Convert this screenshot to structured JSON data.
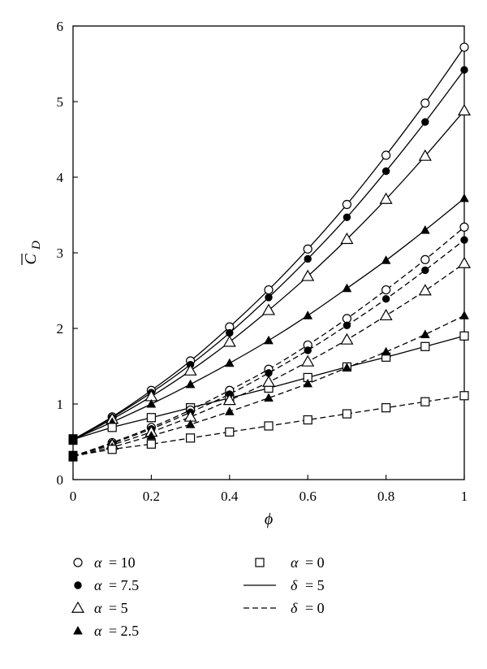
{
  "chart_data": {
    "type": "line",
    "xlabel": "ϕ",
    "ylabel_main": "C",
    "ylabel_sub": "D",
    "xlim": [
      0,
      1
    ],
    "ylim": [
      0,
      6
    ],
    "x_ticks": [
      "0",
      "0.2",
      "0.4",
      "0.6",
      "0.8",
      "1"
    ],
    "y_ticks": [
      "0",
      "1",
      "2",
      "3",
      "4",
      "5",
      "6"
    ],
    "grid": false,
    "legend_position": "bottom",
    "x": [
      0,
      0.1,
      0.2,
      0.3,
      0.4,
      0.5,
      0.6,
      0.7,
      0.8,
      0.9,
      1.0
    ],
    "series": [
      {
        "alpha": 10,
        "delta": 5,
        "marker": "circle-open",
        "linestyle": "solid",
        "values": [
          0.53,
          0.83,
          1.18,
          1.57,
          2.02,
          2.51,
          3.05,
          3.64,
          4.29,
          4.98,
          5.72
        ]
      },
      {
        "alpha": 7.5,
        "delta": 5,
        "marker": "circle-filled",
        "linestyle": "solid",
        "values": [
          0.53,
          0.82,
          1.15,
          1.52,
          1.94,
          2.41,
          2.92,
          3.47,
          4.08,
          4.73,
          5.42
        ]
      },
      {
        "alpha": 5,
        "delta": 5,
        "marker": "triangle-open",
        "linestyle": "solid",
        "values": [
          0.53,
          0.8,
          1.1,
          1.44,
          1.82,
          2.24,
          2.69,
          3.18,
          3.71,
          4.28,
          4.88
        ]
      },
      {
        "alpha": 2.5,
        "delta": 5,
        "marker": "triangle-filled",
        "linestyle": "solid",
        "values": [
          0.53,
          0.76,
          1.0,
          1.26,
          1.54,
          1.84,
          2.17,
          2.53,
          2.9,
          3.3,
          3.72
        ]
      },
      {
        "alpha": 0,
        "delta": 5,
        "marker": "square-open",
        "linestyle": "solid",
        "values": [
          0.53,
          0.69,
          0.82,
          0.95,
          1.08,
          1.21,
          1.35,
          1.49,
          1.62,
          1.76,
          1.9
        ]
      },
      {
        "alpha": 10,
        "delta": 0,
        "marker": "circle-open",
        "linestyle": "dashed",
        "values": [
          0.31,
          0.49,
          0.69,
          0.92,
          1.18,
          1.46,
          1.78,
          2.13,
          2.51,
          2.91,
          3.34
        ]
      },
      {
        "alpha": 7.5,
        "delta": 0,
        "marker": "circle-filled",
        "linestyle": "dashed",
        "values": [
          0.31,
          0.48,
          0.67,
          0.89,
          1.13,
          1.41,
          1.71,
          2.04,
          2.39,
          2.77,
          3.17
        ]
      },
      {
        "alpha": 5,
        "delta": 0,
        "marker": "triangle-open",
        "linestyle": "dashed",
        "values": [
          0.31,
          0.46,
          0.63,
          0.83,
          1.05,
          1.29,
          1.56,
          1.85,
          2.17,
          2.5,
          2.86
        ]
      },
      {
        "alpha": 2.5,
        "delta": 0,
        "marker": "triangle-filled",
        "linestyle": "dashed",
        "values": [
          0.31,
          0.43,
          0.58,
          0.73,
          0.9,
          1.08,
          1.27,
          1.48,
          1.69,
          1.92,
          2.17
        ]
      },
      {
        "alpha": 0,
        "delta": 0,
        "marker": "square-open",
        "linestyle": "dashed",
        "values": [
          0.31,
          0.4,
          0.47,
          0.55,
          0.63,
          0.71,
          0.79,
          0.87,
          0.95,
          1.03,
          1.11
        ]
      }
    ],
    "legend": {
      "items": [
        {
          "marker": "circle-open",
          "prefix": "α",
          "text": "= 10"
        },
        {
          "marker": "circle-filled",
          "prefix": "α",
          "text": "= 7.5"
        },
        {
          "marker": "triangle-open",
          "prefix": "α",
          "text": "= 5"
        },
        {
          "marker": "triangle-filled",
          "prefix": "α",
          "text": "= 2.5"
        },
        {
          "marker": "square-open",
          "prefix": "α",
          "text": "= 0"
        },
        {
          "marker": "line-solid",
          "prefix": "δ",
          "text": "= 5"
        },
        {
          "marker": "line-dashed",
          "prefix": "δ",
          "text": "= 0"
        }
      ]
    }
  }
}
